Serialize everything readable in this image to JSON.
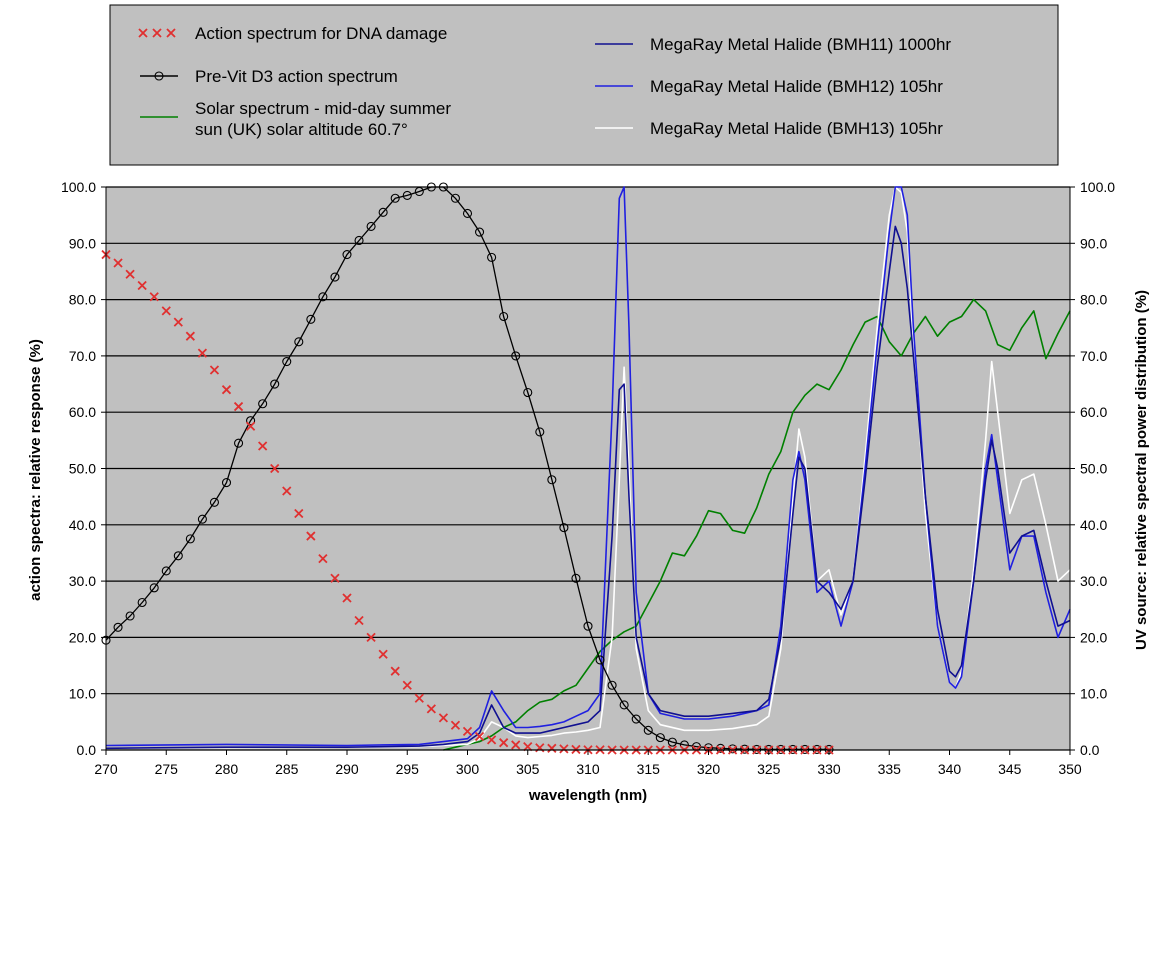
{
  "chart_data": {
    "type": "line",
    "title": "",
    "xlabel": "wavelength (nm)",
    "ylabel": "action spectra: relative response (%)",
    "y2label": "UV source: relative spectral power distribution (%)",
    "xlim": [
      270,
      350
    ],
    "ylim": [
      0,
      100
    ],
    "y2lim": [
      0,
      100
    ],
    "x_ticks": [
      270,
      275,
      280,
      285,
      290,
      295,
      300,
      305,
      310,
      315,
      320,
      325,
      330,
      335,
      340,
      345,
      350
    ],
    "y_ticks": [
      "0.0",
      "10.0",
      "20.0",
      "30.0",
      "40.0",
      "50.0",
      "60.0",
      "70.0",
      "80.0",
      "90.0",
      "100.0"
    ],
    "grid": "horizontal",
    "legend_position": "top",
    "series": [
      {
        "name": "Action spectrum for DNA damage",
        "color": "#e03030",
        "marker": "x",
        "axis": "left",
        "x": [
          270,
          271,
          272,
          273,
          274,
          275,
          276,
          277,
          278,
          279,
          280,
          281,
          282,
          283,
          284,
          285,
          286,
          287,
          288,
          289,
          290,
          291,
          292,
          293,
          294,
          295,
          296,
          297,
          298,
          299,
          300,
          301,
          302,
          303,
          304,
          305,
          306,
          307,
          308,
          309,
          310,
          311,
          312,
          313,
          314,
          315,
          316,
          317,
          318,
          319,
          320,
          321,
          322,
          323,
          324,
          325,
          326,
          327,
          328,
          329,
          330
        ],
        "y": [
          88,
          86.5,
          84.5,
          82.5,
          80.5,
          78,
          76,
          73.5,
          70.5,
          67.5,
          64,
          61,
          57.5,
          54,
          50,
          46,
          42,
          38,
          34,
          30.5,
          27,
          23,
          20,
          17,
          14,
          11.5,
          9.2,
          7.3,
          5.7,
          4.4,
          3.3,
          2.4,
          1.8,
          1.3,
          0.9,
          0.6,
          0.4,
          0.3,
          0.2,
          0.1,
          0.05,
          0.05,
          0,
          0,
          0,
          0,
          0,
          0,
          0,
          0,
          0,
          0,
          0,
          0,
          0,
          0,
          0,
          0,
          0,
          0,
          0
        ]
      },
      {
        "name": "Pre-Vit D3 action spectrum",
        "color": "#000000",
        "marker": "circle",
        "axis": "left",
        "x": [
          270,
          271,
          272,
          273,
          274,
          275,
          276,
          277,
          278,
          279,
          280,
          281,
          282,
          283,
          284,
          285,
          286,
          287,
          288,
          289,
          290,
          291,
          292,
          293,
          294,
          295,
          296,
          297,
          298,
          299,
          300,
          301,
          302,
          303,
          304,
          305,
          306,
          307,
          308,
          309,
          310,
          311,
          312,
          313,
          314,
          315,
          316,
          317,
          318,
          319,
          320,
          321,
          322,
          323,
          324,
          325,
          326,
          327,
          328,
          329,
          330
        ],
        "y": [
          19.5,
          21.8,
          23.8,
          26.2,
          28.8,
          31.8,
          34.5,
          37.5,
          41,
          44,
          47.5,
          54.5,
          58.5,
          61.5,
          65,
          69,
          72.5,
          76.5,
          80.5,
          84,
          88,
          90.5,
          93,
          95.5,
          98,
          98.5,
          99.2,
          100,
          100,
          98,
          95.3,
          92,
          87.5,
          77,
          70,
          63.5,
          56.5,
          48,
          39.5,
          30.5,
          22,
          16,
          11.5,
          8,
          5.5,
          3.5,
          2.2,
          1.4,
          0.9,
          0.6,
          0.4,
          0.3,
          0.2,
          0.15,
          0.1,
          0.1,
          0.1,
          0.1,
          0.1,
          0.1,
          0.1
        ]
      },
      {
        "name": "Solar spectrum - mid-day summer sun (UK) solar altitude 60.7°",
        "name_lines": [
          "Solar spectrum - mid-day summer",
          "sun (UK)  solar altitude 60.7°"
        ],
        "color": "#008000",
        "axis": "right",
        "x": [
          298,
          299,
          300,
          301,
          302,
          303,
          304,
          305,
          306,
          307,
          308,
          309,
          310,
          311,
          312,
          313,
          314,
          315,
          316,
          317,
          318,
          319,
          320,
          321,
          322,
          323,
          324,
          325,
          326,
          327,
          328,
          329,
          330,
          331,
          332,
          333,
          334,
          335,
          336,
          337,
          338,
          339,
          340,
          341,
          342,
          343,
          344,
          345,
          346,
          347,
          348,
          349,
          350
        ],
        "y": [
          0,
          0.5,
          1,
          1.5,
          2.5,
          4,
          5,
          7,
          8.5,
          9,
          10.5,
          11.5,
          14.5,
          17.5,
          19.5,
          21,
          22,
          26,
          30,
          35,
          34.5,
          38,
          42.5,
          42,
          39,
          38.5,
          43,
          49,
          53,
          60,
          63,
          65,
          64,
          67.5,
          72,
          76,
          77,
          72.5,
          70,
          74,
          77,
          73.5,
          76,
          77,
          80,
          78,
          72,
          71,
          75,
          78,
          69.5,
          74,
          78
        ]
      },
      {
        "name": "MegaRay Metal Halide (BMH11) 1000hr",
        "color": "#101090",
        "axis": "right",
        "x": [
          270,
          280,
          290,
          296,
          298,
          300,
          301,
          302,
          303,
          304,
          305,
          306,
          307,
          308,
          309,
          310,
          311,
          312,
          312.6,
          313,
          313.4,
          314,
          315,
          316,
          318,
          320,
          322,
          324,
          325,
          326,
          327,
          327.5,
          328,
          329,
          330,
          331,
          332,
          333,
          334,
          335,
          335.5,
          336,
          336.5,
          337,
          338,
          339,
          340,
          340.5,
          341,
          342,
          343,
          343.5,
          344,
          345,
          346,
          347,
          348,
          349,
          350
        ],
        "y": [
          0.3,
          0.5,
          0.5,
          0.7,
          1,
          1.5,
          3,
          8,
          4,
          3,
          3,
          3,
          3.5,
          4,
          4.5,
          5,
          7,
          38,
          64,
          65,
          45,
          20,
          10,
          7,
          6,
          6,
          6.5,
          7,
          9,
          20,
          42,
          52,
          50,
          30,
          28,
          25,
          30,
          48,
          68,
          85,
          93,
          90,
          82,
          70,
          45,
          25,
          14,
          13,
          15,
          30,
          48,
          55,
          50,
          35,
          38,
          39,
          30,
          22,
          23
        ]
      },
      {
        "name": "MegaRay Metal Halide (BMH12) 105hr",
        "color": "#2020e0",
        "axis": "right",
        "x": [
          270,
          280,
          290,
          296,
          298,
          300,
          301,
          302,
          303,
          304,
          305,
          306,
          307,
          308,
          309,
          310,
          311,
          312,
          312.6,
          313,
          313.4,
          314,
          315,
          316,
          318,
          320,
          322,
          324,
          325,
          326,
          327,
          327.5,
          328,
          329,
          330,
          331,
          332,
          333,
          334,
          335,
          335.5,
          336,
          336.5,
          337,
          338,
          339,
          340,
          340.5,
          341,
          342,
          343,
          343.5,
          344,
          345,
          346,
          347,
          348,
          349,
          350
        ],
        "y": [
          0.8,
          1,
          0.8,
          1,
          1.5,
          2,
          4,
          10.5,
          7,
          4,
          4,
          4.2,
          4.5,
          5,
          6,
          7,
          10,
          60,
          98,
          100,
          75,
          28,
          10,
          6.5,
          5.5,
          5.5,
          6,
          7,
          8,
          22,
          48,
          53,
          48,
          28,
          30,
          22,
          30,
          50,
          72,
          92,
          100,
          100,
          95,
          75,
          45,
          22,
          12,
          11,
          13,
          30,
          50,
          56,
          48,
          32,
          38,
          38,
          28,
          20,
          25
        ]
      },
      {
        "name": "MegaRay Metal Halide (BMH13) 105hr",
        "color": "#ffffff",
        "axis": "right",
        "x": [
          270,
          280,
          290,
          296,
          298,
          300,
          301,
          302,
          303,
          304,
          305,
          306,
          307,
          308,
          309,
          310,
          311,
          312,
          312.6,
          313,
          313.4,
          314,
          315,
          316,
          318,
          320,
          322,
          324,
          325,
          326,
          327,
          327.5,
          328,
          329,
          330,
          331,
          332,
          333,
          334,
          335,
          335.5,
          336,
          336.5,
          337,
          338,
          339,
          340,
          340.5,
          341,
          342,
          343,
          343.5,
          344,
          345,
          346,
          347,
          348,
          349,
          350
        ],
        "y": [
          0.3,
          0.4,
          0.5,
          0.6,
          0.8,
          1,
          2,
          5,
          4,
          2.5,
          2.2,
          2.4,
          2.6,
          3,
          3.2,
          3.5,
          4,
          20,
          48,
          68,
          50,
          18,
          7,
          4.5,
          3.5,
          3.5,
          3.8,
          4.5,
          6,
          18,
          45,
          57,
          52,
          30,
          32,
          24,
          30,
          52,
          75,
          95,
          100,
          99,
          92,
          72,
          42,
          22,
          12,
          11,
          14,
          32,
          55,
          69,
          60,
          42,
          48,
          49,
          40,
          30,
          32
        ]
      }
    ]
  }
}
